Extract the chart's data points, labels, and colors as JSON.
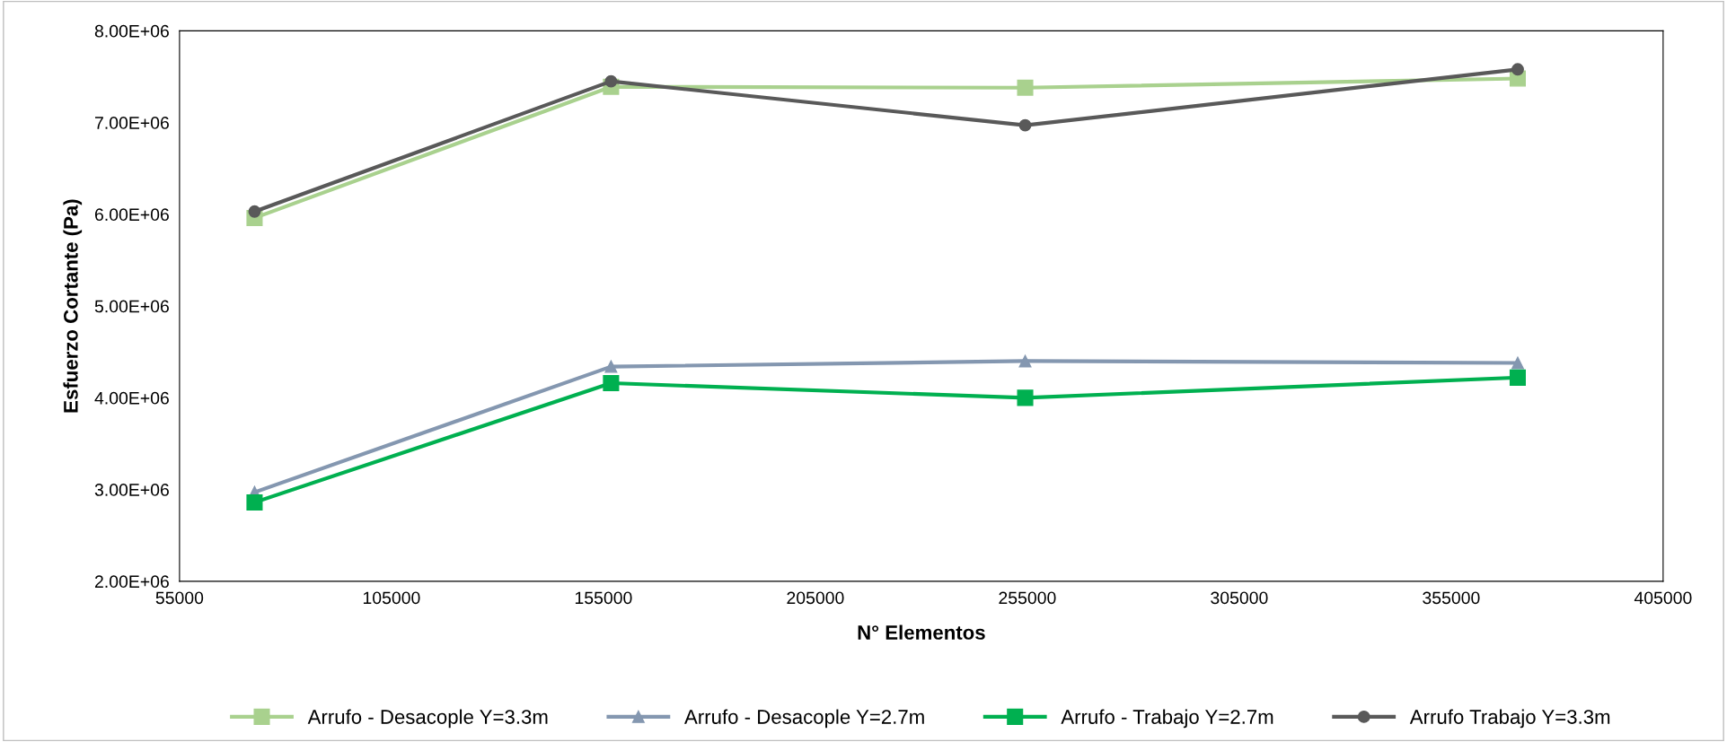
{
  "chart_data": {
    "type": "line",
    "xlabel": "N° Elementos",
    "ylabel": "Esfuerzo Cortante (Pa)",
    "x": [
      72700,
      156800,
      254500,
      370700
    ],
    "series": [
      {
        "name": "Arrufo - Desacople Y=3.3m",
        "color": "#a9d18e",
        "marker": "square",
        "values": [
          5960000,
          7390000,
          7380000,
          7480000
        ]
      },
      {
        "name": "Arrufo - Desacople Y=2.7m",
        "color": "#8497b0",
        "marker": "triangle",
        "values": [
          2970000,
          4340000,
          4400000,
          4380000
        ]
      },
      {
        "name": "Arrufo - Trabajo Y=2.7m",
        "color": "#00b050",
        "marker": "square",
        "values": [
          2860000,
          4160000,
          4000000,
          4220000
        ]
      },
      {
        "name": "Arrufo Trabajo Y=3.3m",
        "color": "#595959",
        "marker": "circle",
        "values": [
          6030000,
          7450000,
          6970000,
          7580000
        ]
      }
    ],
    "xlim": [
      55000,
      405000
    ],
    "xticks": [
      55000,
      105000,
      155000,
      205000,
      255000,
      305000,
      355000,
      405000
    ],
    "ylim": [
      2000000,
      8000000
    ],
    "yticks": [
      {
        "value": 2000000,
        "label": "2.00E+06"
      },
      {
        "value": 3000000,
        "label": "3.00E+06"
      },
      {
        "value": 4000000,
        "label": "4.00E+06"
      },
      {
        "value": 5000000,
        "label": "5.00E+06"
      },
      {
        "value": 6000000,
        "label": "6.00E+06"
      },
      {
        "value": 7000000,
        "label": "7.00E+06"
      },
      {
        "value": 8000000,
        "label": "8.00E+06"
      }
    ],
    "grid": false,
    "legend": "bottom",
    "line_style": "solid"
  }
}
